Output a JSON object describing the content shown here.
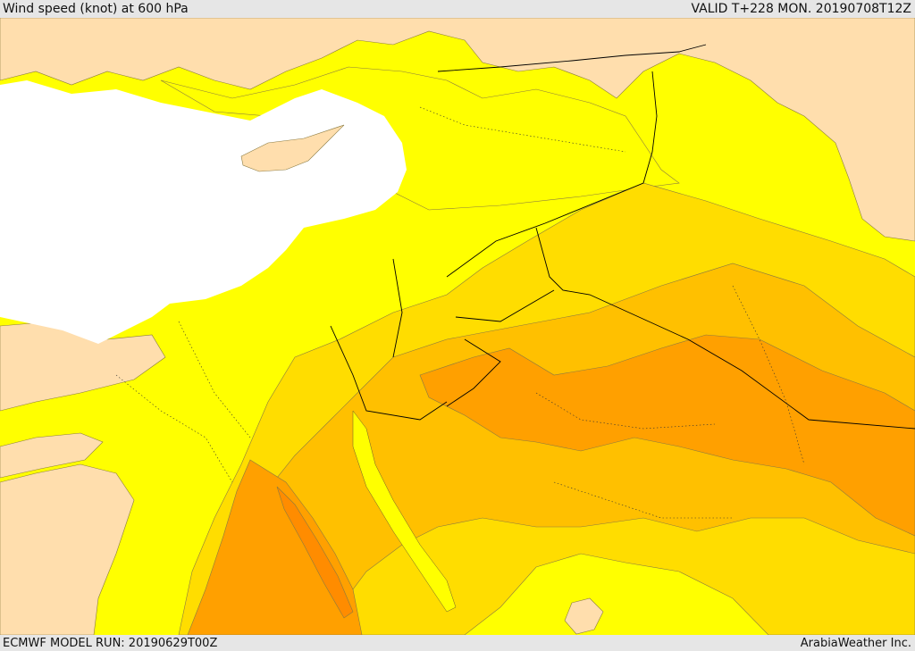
{
  "header": {
    "title": "Wind speed (knot) at 600 hPa",
    "valid": "VALID T+228 MON. 20190708T12Z"
  },
  "footer": {
    "run": "ECMWF MODEL RUN: 20190629T00Z",
    "credit": "ArabiaWeather Inc."
  },
  "palette": {
    "land_calm": "#ffdead",
    "band_1": "#ffff00",
    "band_2": "#ffdd00",
    "band_3": "#ffc000",
    "band_4": "#ffa000",
    "band_5": "#ff8c00",
    "sea": "#ffffff",
    "border": "#000000"
  }
}
